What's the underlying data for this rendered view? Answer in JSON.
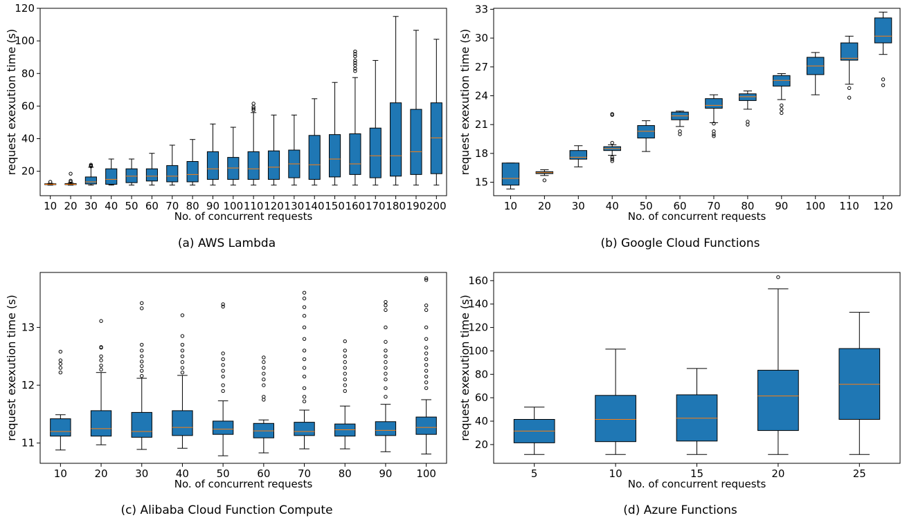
{
  "chart_data": [
    {
      "type": "box",
      "caption": "(a) AWS Lambda",
      "xlabel": "No. of concurrent requests",
      "ylabel": "request exexution time (s)",
      "ylim": [
        5,
        120
      ],
      "yticks": [
        20,
        40,
        60,
        80,
        100,
        120
      ],
      "categories": [
        "10",
        "20",
        "30",
        "40",
        "50",
        "60",
        "70",
        "80",
        "90",
        "100",
        "110",
        "120",
        "130",
        "140",
        "150",
        "160",
        "170",
        "180",
        "190",
        "200"
      ],
      "boxes": [
        {
          "whislo": 11.5,
          "q1": 11.8,
          "med": 12.0,
          "q3": 12.3,
          "whishi": 12.6,
          "fliers": [
            13.5
          ]
        },
        {
          "whislo": 11.5,
          "q1": 11.8,
          "med": 12.0,
          "q3": 12.4,
          "whishi": 13.0,
          "fliers": [
            13.5,
            14.2,
            18.5
          ]
        },
        {
          "whislo": 11.5,
          "q1": 12.2,
          "med": 13.5,
          "q3": 16.5,
          "whishi": 22.5,
          "fliers": [
            23.0,
            23.5,
            24.0
          ]
        },
        {
          "whislo": 11.5,
          "q1": 12.0,
          "med": 15.0,
          "q3": 21.5,
          "whishi": 27.5,
          "fliers": []
        },
        {
          "whislo": 11.5,
          "q1": 13.0,
          "med": 17.0,
          "q3": 21.5,
          "whishi": 27.5,
          "fliers": []
        },
        {
          "whislo": 11.5,
          "q1": 14.0,
          "med": 17.0,
          "q3": 21.5,
          "whishi": 31.0,
          "fliers": []
        },
        {
          "whislo": 11.5,
          "q1": 13.5,
          "med": 17.0,
          "q3": 23.5,
          "whishi": 36.0,
          "fliers": []
        },
        {
          "whislo": 11.5,
          "q1": 13.5,
          "med": 18.0,
          "q3": 26.0,
          "whishi": 39.5,
          "fliers": []
        },
        {
          "whislo": 11.5,
          "q1": 15.0,
          "med": 21.5,
          "q3": 32.0,
          "whishi": 49.0,
          "fliers": []
        },
        {
          "whislo": 11.5,
          "q1": 15.0,
          "med": 22.0,
          "q3": 28.5,
          "whishi": 47.0,
          "fliers": []
        },
        {
          "whislo": 11.5,
          "q1": 15.0,
          "med": 21.5,
          "q3": 32.0,
          "whishi": 56.0,
          "fliers": [
            57.5,
            58.5,
            59.5,
            61.5
          ]
        },
        {
          "whislo": 11.5,
          "q1": 15.0,
          "med": 22.5,
          "q3": 32.5,
          "whishi": 54.5,
          "fliers": []
        },
        {
          "whislo": 11.5,
          "q1": 16.0,
          "med": 24.5,
          "q3": 33.0,
          "whishi": 54.5,
          "fliers": []
        },
        {
          "whislo": 11.5,
          "q1": 15.0,
          "med": 24.0,
          "q3": 42.0,
          "whishi": 64.5,
          "fliers": []
        },
        {
          "whislo": 11.5,
          "q1": 16.5,
          "med": 27.5,
          "q3": 42.5,
          "whishi": 74.5,
          "fliers": []
        },
        {
          "whislo": 11.5,
          "q1": 18.0,
          "med": 24.5,
          "q3": 43.0,
          "whishi": 77.5,
          "fliers": [
            81.5,
            83.0,
            85.0,
            86.5,
            88.0,
            90.5,
            92.0,
            93.5
          ]
        },
        {
          "whislo": 11.5,
          "q1": 16.0,
          "med": 29.5,
          "q3": 46.5,
          "whishi": 88.0,
          "fliers": []
        },
        {
          "whislo": 11.5,
          "q1": 17.0,
          "med": 29.5,
          "q3": 62.0,
          "whishi": 115.0,
          "fliers": []
        },
        {
          "whislo": 11.5,
          "q1": 18.0,
          "med": 32.0,
          "q3": 58.0,
          "whishi": 106.5,
          "fliers": []
        },
        {
          "whislo": 11.5,
          "q1": 18.5,
          "med": 40.5,
          "q3": 62.0,
          "whishi": 101.0,
          "fliers": []
        }
      ]
    },
    {
      "type": "box",
      "caption": "(b) Google Cloud Functions",
      "xlabel": "No. of concurrent requests",
      "ylabel": "request exexution time (s)",
      "ylim": [
        13.6,
        33.1
      ],
      "yticks": [
        15,
        18,
        21,
        24,
        27,
        30,
        33
      ],
      "categories": [
        "10",
        "20",
        "30",
        "40",
        "50",
        "60",
        "70",
        "80",
        "90",
        "100",
        "110",
        "120"
      ],
      "boxes": [
        {
          "whislo": 14.3,
          "q1": 14.7,
          "med": 15.4,
          "q3": 17.0,
          "whishi": 17.0,
          "fliers": []
        },
        {
          "whislo": 15.7,
          "q1": 15.9,
          "med": 16.0,
          "q3": 16.1,
          "whishi": 16.3,
          "fliers": [
            15.2
          ]
        },
        {
          "whislo": 16.6,
          "q1": 17.4,
          "med": 17.6,
          "q3": 18.3,
          "whishi": 18.8,
          "fliers": []
        },
        {
          "whislo": 17.8,
          "q1": 18.3,
          "med": 18.5,
          "q3": 18.7,
          "whishi": 18.9,
          "fliers": [
            17.2,
            17.4,
            17.6,
            19.1,
            22.0,
            22.1
          ]
        },
        {
          "whislo": 18.2,
          "q1": 19.6,
          "med": 20.3,
          "q3": 20.9,
          "whishi": 21.4,
          "fliers": []
        },
        {
          "whislo": 20.8,
          "q1": 21.5,
          "med": 21.9,
          "q3": 22.3,
          "whishi": 22.4,
          "fliers": [
            20.0,
            20.3
          ]
        },
        {
          "whislo": 21.2,
          "q1": 22.7,
          "med": 23.0,
          "q3": 23.7,
          "whishi": 24.1,
          "fliers": [
            19.8,
            20.0,
            20.3,
            21.1
          ]
        },
        {
          "whislo": 22.6,
          "q1": 23.5,
          "med": 23.9,
          "q3": 24.2,
          "whishi": 24.5,
          "fliers": [
            21.0,
            21.3
          ]
        },
        {
          "whislo": 23.6,
          "q1": 25.0,
          "med": 25.6,
          "q3": 26.1,
          "whishi": 26.3,
          "fliers": [
            22.2,
            22.6,
            23.0
          ]
        },
        {
          "whislo": 24.1,
          "q1": 26.2,
          "med": 27.1,
          "q3": 28.0,
          "whishi": 28.5,
          "fliers": []
        },
        {
          "whislo": 25.2,
          "q1": 27.7,
          "med": 27.9,
          "q3": 29.5,
          "whishi": 30.2,
          "fliers": [
            23.8,
            24.8
          ]
        },
        {
          "whislo": 28.3,
          "q1": 29.5,
          "med": 30.2,
          "q3": 32.1,
          "whishi": 32.7,
          "fliers": [
            25.1,
            25.7
          ]
        }
      ]
    },
    {
      "type": "box",
      "caption": "(c) Alibaba Cloud Function Compute",
      "xlabel": "No. of concurrent requests",
      "ylabel": "request exexution time (s)",
      "ylim": [
        10.65,
        13.95
      ],
      "yticks": [
        11,
        12,
        13
      ],
      "categories": [
        "10",
        "20",
        "30",
        "40",
        "50",
        "60",
        "70",
        "80",
        "90",
        "100"
      ],
      "boxes": [
        {
          "whislo": 10.88,
          "q1": 11.12,
          "med": 11.2,
          "q3": 11.42,
          "whishi": 11.49,
          "fliers": [
            12.22,
            12.3,
            12.37,
            12.43,
            12.58
          ]
        },
        {
          "whislo": 10.97,
          "q1": 11.12,
          "med": 11.25,
          "q3": 11.56,
          "whishi": 12.22,
          "fliers": [
            12.27,
            12.34,
            12.43,
            12.5,
            12.65,
            12.66,
            13.11
          ]
        },
        {
          "whislo": 10.89,
          "q1": 11.1,
          "med": 11.2,
          "q3": 11.53,
          "whishi": 12.12,
          "fliers": [
            12.16,
            12.25,
            12.33,
            12.41,
            12.5,
            12.6,
            12.7,
            13.33,
            13.42
          ]
        },
        {
          "whislo": 10.91,
          "q1": 11.13,
          "med": 11.27,
          "q3": 11.56,
          "whishi": 12.17,
          "fliers": [
            12.22,
            12.3,
            12.4,
            12.5,
            12.6,
            12.7,
            12.85,
            13.21
          ]
        },
        {
          "whislo": 10.78,
          "q1": 11.15,
          "med": 11.24,
          "q3": 11.38,
          "whishi": 11.73,
          "fliers": [
            11.9,
            12.0,
            12.15,
            12.25,
            12.35,
            12.45,
            12.55,
            13.36,
            13.4
          ]
        },
        {
          "whislo": 10.83,
          "q1": 11.09,
          "med": 11.21,
          "q3": 11.34,
          "whishi": 11.4,
          "fliers": [
            11.75,
            11.8,
            12.0,
            12.1,
            12.2,
            12.3,
            12.4,
            12.48
          ]
        },
        {
          "whislo": 10.9,
          "q1": 11.13,
          "med": 11.2,
          "q3": 11.36,
          "whishi": 11.57,
          "fliers": [
            11.72,
            11.8,
            11.95,
            12.15,
            12.3,
            12.45,
            12.6,
            12.8,
            13.0,
            13.2,
            13.35,
            13.5,
            13.6
          ]
        },
        {
          "whislo": 10.9,
          "q1": 11.12,
          "med": 11.23,
          "q3": 11.33,
          "whishi": 11.64,
          "fliers": [
            11.9,
            12.0,
            12.1,
            12.2,
            12.3,
            12.4,
            12.5,
            12.6,
            12.76
          ]
        },
        {
          "whislo": 10.85,
          "q1": 11.13,
          "med": 11.22,
          "q3": 11.37,
          "whishi": 11.67,
          "fliers": [
            11.8,
            11.95,
            12.1,
            12.2,
            12.3,
            12.4,
            12.5,
            12.6,
            12.75,
            13.0,
            13.3,
            13.38,
            13.44
          ]
        },
        {
          "whislo": 10.81,
          "q1": 11.15,
          "med": 11.27,
          "q3": 11.45,
          "whishi": 11.75,
          "fliers": [
            11.95,
            12.05,
            12.15,
            12.25,
            12.35,
            12.45,
            12.55,
            12.65,
            12.8,
            13.0,
            13.3,
            13.38,
            13.82,
            13.85
          ]
        }
      ]
    },
    {
      "type": "box",
      "caption": "(d) Azure Functions",
      "xlabel": "No. of concurrent requests",
      "ylabel": "request exexution time (s)",
      "ylim": [
        4,
        167
      ],
      "yticks": [
        20,
        40,
        60,
        80,
        100,
        120,
        140,
        160
      ],
      "categories": [
        "5",
        "10",
        "15",
        "20",
        "25"
      ],
      "boxes": [
        {
          "whislo": 11.5,
          "q1": 21.5,
          "med": 31.5,
          "q3": 41.5,
          "whishi": 52.0,
          "fliers": []
        },
        {
          "whislo": 11.5,
          "q1": 22.5,
          "med": 41.5,
          "q3": 62.0,
          "whishi": 101.5,
          "fliers": []
        },
        {
          "whislo": 11.5,
          "q1": 23.0,
          "med": 42.5,
          "q3": 62.5,
          "whishi": 85.0,
          "fliers": []
        },
        {
          "whislo": 11.5,
          "q1": 32.0,
          "med": 61.5,
          "q3": 83.5,
          "whishi": 153.0,
          "fliers": [
            163.0
          ]
        },
        {
          "whislo": 11.5,
          "q1": 41.5,
          "med": 71.5,
          "q3": 102.0,
          "whishi": 133.0,
          "fliers": []
        }
      ]
    }
  ],
  "colors": {
    "box": "#1f77b4",
    "median": "#ff7f0e",
    "line": "#000000"
  }
}
